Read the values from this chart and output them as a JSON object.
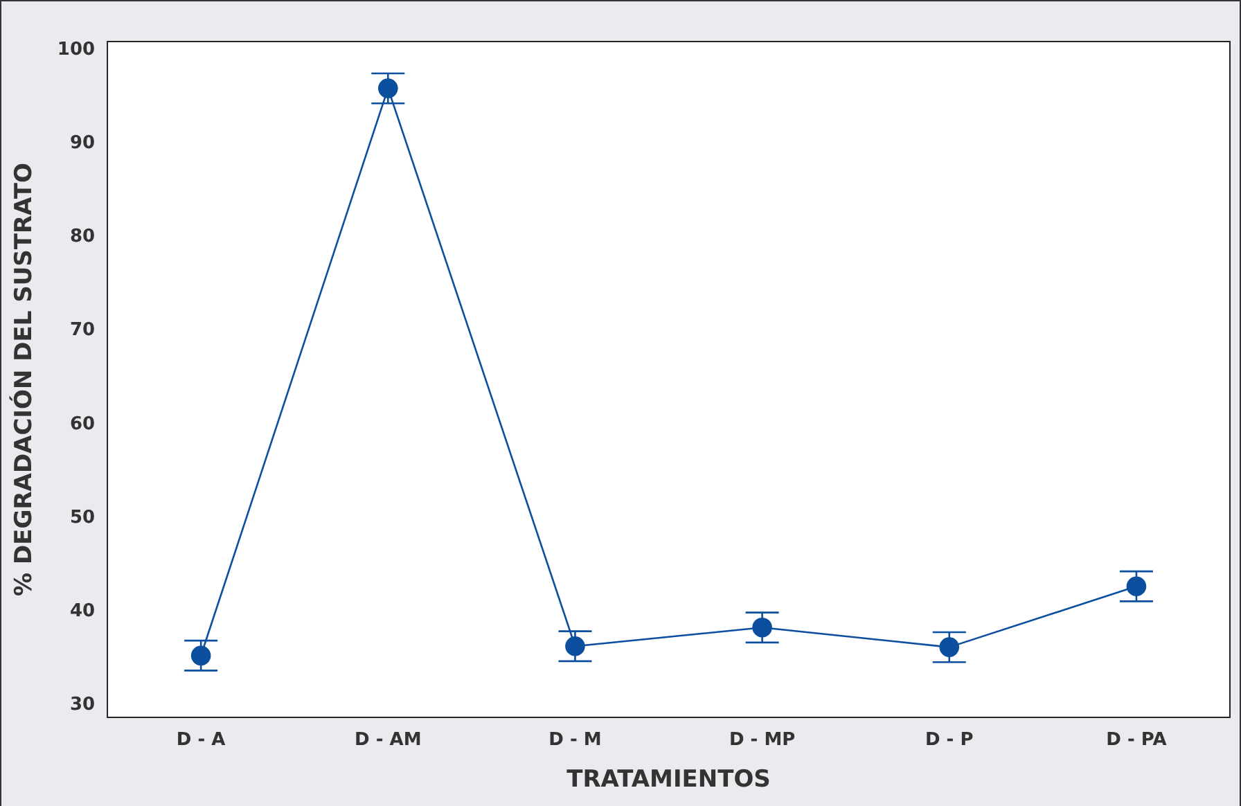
{
  "chart_data": {
    "type": "line",
    "xlabel": "TRATAMIENTOS",
    "ylabel": "% DEGRADACIÓN DEL SUSTRATO",
    "categories": [
      "D - A",
      "D - AM",
      "D - M",
      "D - MP",
      "D - P",
      "D - PA"
    ],
    "series": [
      {
        "color": "#0b4f9e",
        "values": [
          35.3,
          95.9,
          36.3,
          38.3,
          36.2,
          42.7
        ],
        "errors": [
          1.6,
          1.6,
          1.6,
          1.6,
          1.6,
          1.6
        ]
      }
    ],
    "ylim": [
      28.7,
      100.9
    ],
    "yticks": [
      30,
      40,
      50,
      60,
      70,
      80,
      90,
      100
    ],
    "grid": false,
    "legend": false,
    "marker": "circle",
    "line_style": "solid"
  }
}
